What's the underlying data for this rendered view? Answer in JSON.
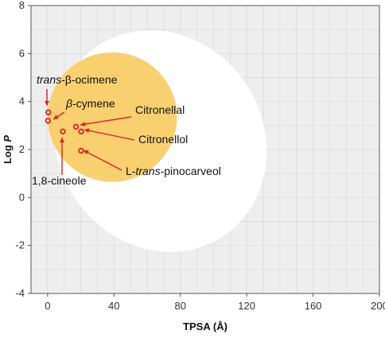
{
  "chart_data": {
    "type": "scatter",
    "xlabel": "TPSA (Å)",
    "ylabel_main": "Log ",
    "ylabel_italic": "P",
    "xlim": [
      -10,
      200
    ],
    "ylim": [
      -4,
      8
    ],
    "xticks": [
      0,
      40,
      80,
      120,
      160,
      200
    ],
    "yticks": [
      -4,
      -2,
      0,
      2,
      4,
      6,
      8
    ],
    "grid": true,
    "regions": [
      {
        "shape": "ellipse",
        "color": "#ffffff",
        "cx": 68,
        "cy": 2.35,
        "rx": 62,
        "ry": 4.75,
        "rotate": -33
      },
      {
        "shape": "ellipse",
        "color": "#f8d06f",
        "cx": 39,
        "cy": 3.35,
        "rx": 39,
        "ry": 2.7,
        "rotate": 0
      }
    ],
    "points": [
      {
        "name_parts": [
          {
            "t": "trans",
            "i": true
          },
          {
            "t": "-β-ocimene",
            "i": false
          }
        ],
        "x": 0.4,
        "y": 3.55
      },
      {
        "name_parts": [
          {
            "t": "β",
            "i": true
          },
          {
            "t": "-cymene",
            "i": false
          }
        ],
        "x": 0.2,
        "y": 3.2
      },
      {
        "name_parts": [
          {
            "t": "Citronellal",
            "i": false
          }
        ],
        "x": 17.1,
        "y": 2.95
      },
      {
        "name_parts": [
          {
            "t": "Citronellol",
            "i": false
          }
        ],
        "x": 20.2,
        "y": 2.75
      },
      {
        "name_parts": [
          {
            "t": "L-",
            "i": false
          },
          {
            "t": "trans",
            "i": true
          },
          {
            "t": "-pinocarveol",
            "i": false
          }
        ],
        "x": 20.2,
        "y": 1.95
      },
      {
        "name_parts": [
          {
            "t": "1,8-cineole",
            "i": false
          }
        ],
        "x": 9.2,
        "y": 2.75
      }
    ],
    "marker_color": "#e02020"
  }
}
